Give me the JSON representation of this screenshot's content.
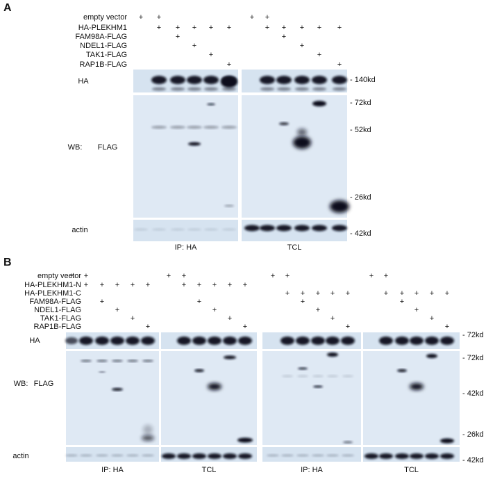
{
  "panel_a": {
    "letter": "A",
    "conditions": [
      {
        "label": "empty vector",
        "marks": [
          "+",
          "+",
          null,
          null,
          null,
          null,
          "+",
          "+",
          null,
          null,
          null,
          null
        ]
      },
      {
        "label": "HA-PLEKHM1",
        "marks": [
          null,
          "+",
          "+",
          "+",
          "+",
          "+",
          null,
          "+",
          "+",
          "+",
          "+",
          "+"
        ]
      },
      {
        "label": "FAM98A-FLAG",
        "marks": [
          null,
          null,
          "+",
          null,
          null,
          null,
          null,
          null,
          "+",
          null,
          null,
          null
        ]
      },
      {
        "label": "NDEL1-FLAG",
        "marks": [
          null,
          null,
          null,
          "+",
          null,
          null,
          null,
          null,
          null,
          "+",
          null,
          null
        ]
      },
      {
        "label": "TAK1-FLAG",
        "marks": [
          null,
          null,
          null,
          null,
          "+",
          null,
          null,
          null,
          null,
          null,
          "+",
          null
        ]
      },
      {
        "label": "RAP1B-FLAG",
        "marks": [
          null,
          null,
          null,
          null,
          null,
          "+",
          null,
          null,
          null,
          null,
          null,
          "+"
        ]
      }
    ],
    "strip_labels": {
      "ha": "HA",
      "wb": "WB:",
      "flag": "FLAG",
      "actin": "actin"
    },
    "markers": [
      "- 140kd",
      "- 72kd",
      "- 52kd",
      "- 26kd",
      "- 42kd"
    ],
    "groups": [
      "IP: HA",
      "TCL"
    ]
  },
  "panel_b": {
    "letter": "B",
    "conditions": [
      {
        "label": "empty vector",
        "marks": [
          "+",
          "+",
          null,
          null,
          null,
          null,
          "+",
          "+",
          null,
          null,
          null,
          null,
          "+",
          "+",
          null,
          null,
          null,
          null,
          "+",
          "+",
          null,
          null,
          null,
          null
        ]
      },
      {
        "label": "HA-PLEKHM1-N",
        "marks": [
          null,
          "+",
          "+",
          "+",
          "+",
          "+",
          null,
          "+",
          "+",
          "+",
          "+",
          "+",
          null,
          null,
          null,
          null,
          null,
          null,
          null,
          null,
          null,
          null,
          null,
          null
        ]
      },
      {
        "label": "HA-PLEKHM1-C",
        "marks": [
          null,
          null,
          null,
          null,
          null,
          null,
          null,
          null,
          null,
          null,
          null,
          null,
          null,
          "+",
          "+",
          "+",
          "+",
          "+",
          null,
          "+",
          "+",
          "+",
          "+",
          "+"
        ]
      },
      {
        "label": "FAM98A-FLAG",
        "marks": [
          null,
          null,
          "+",
          null,
          null,
          null,
          null,
          null,
          "+",
          null,
          null,
          null,
          null,
          null,
          "+",
          null,
          null,
          null,
          null,
          null,
          "+",
          null,
          null,
          null
        ]
      },
      {
        "label": "NDEL1-FLAG",
        "marks": [
          null,
          null,
          null,
          "+",
          null,
          null,
          null,
          null,
          null,
          "+",
          null,
          null,
          null,
          null,
          null,
          "+",
          null,
          null,
          null,
          null,
          null,
          "+",
          null,
          null
        ]
      },
      {
        "label": "TAK1-FLAG",
        "marks": [
          null,
          null,
          null,
          null,
          "+",
          null,
          null,
          null,
          null,
          null,
          "+",
          null,
          null,
          null,
          null,
          null,
          "+",
          null,
          null,
          null,
          null,
          null,
          "+",
          null
        ]
      },
      {
        "label": "RAP1B-FLAG",
        "marks": [
          null,
          null,
          null,
          null,
          null,
          "+",
          null,
          null,
          null,
          null,
          null,
          "+",
          null,
          null,
          null,
          null,
          null,
          "+",
          null,
          null,
          null,
          null,
          null,
          "+"
        ]
      }
    ],
    "strip_labels": {
      "ha": "HA",
      "wb": "WB:",
      "flag": "FLAG",
      "actin": "actin"
    },
    "markers": [
      "- 72kd",
      "- 72kd",
      "- 42kd",
      "- 26kd",
      "- 42kd"
    ],
    "groups": [
      "IP: HA",
      "TCL",
      "IP: HA",
      "TCL"
    ]
  }
}
